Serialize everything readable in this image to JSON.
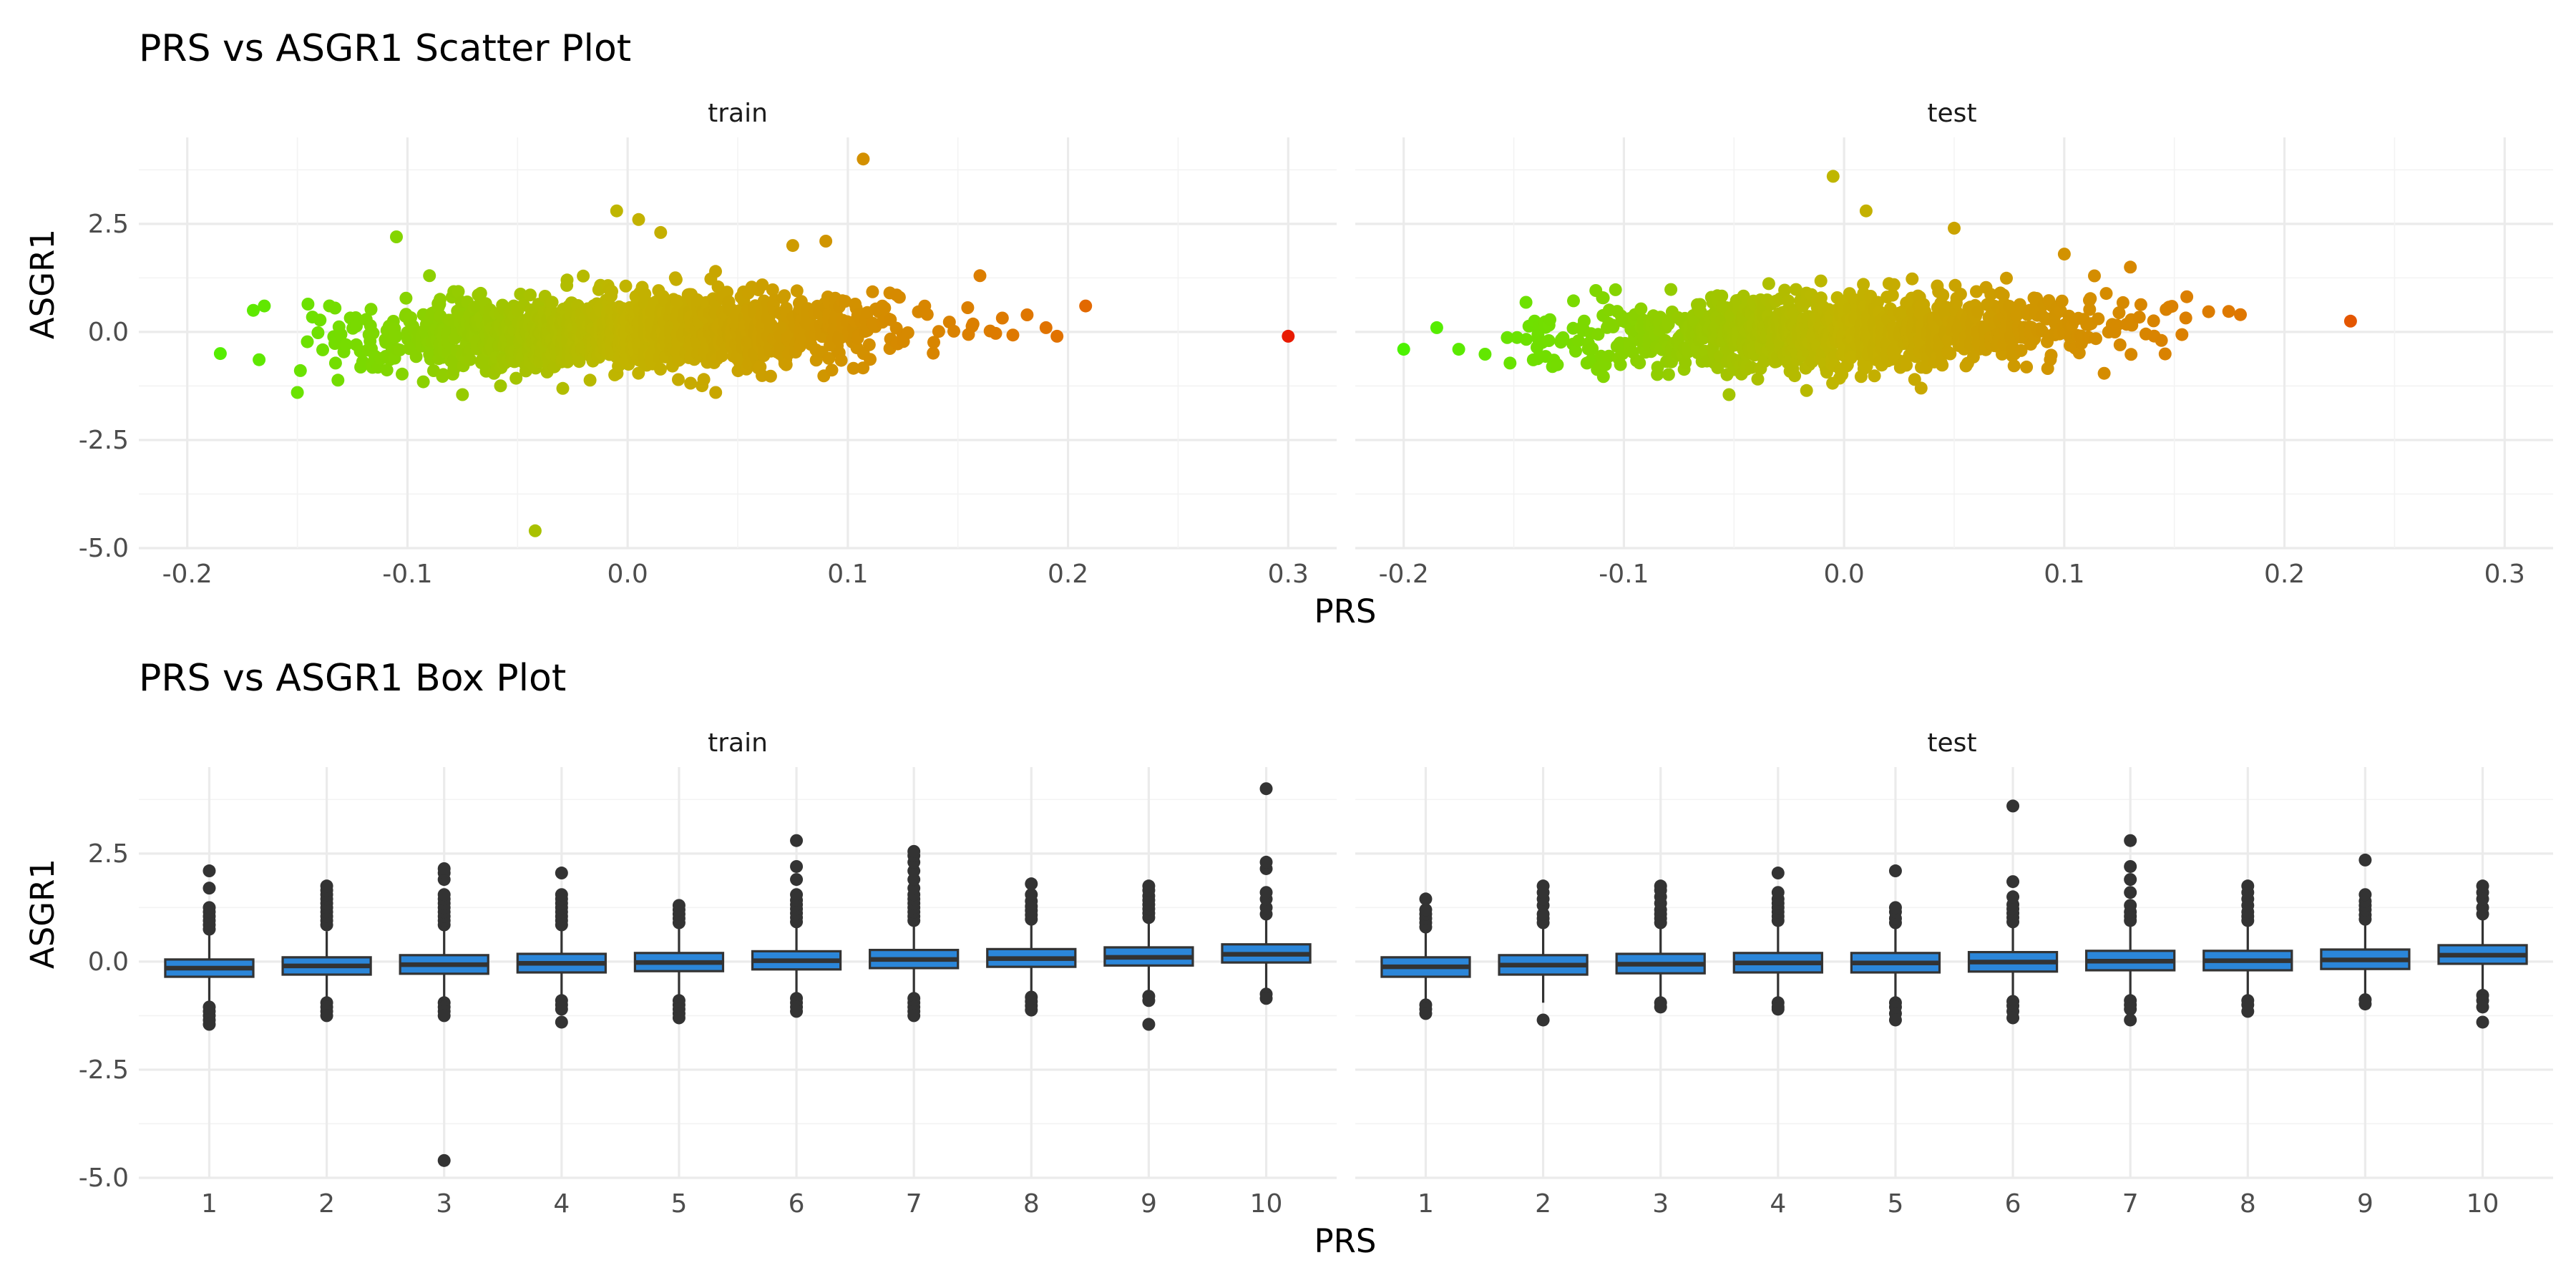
{
  "titles": {
    "scatter": "PRS vs ASGR1 Scatter Plot",
    "box": "PRS vs ASGR1 Box Plot"
  },
  "colors": {
    "point_low": "#4cf200",
    "point_mid": "#c2b400",
    "point_high": "#e27000",
    "point_max": "#e81a00",
    "box_fill": "#2b86d9",
    "box_line": "#333333",
    "outlier": "#333333",
    "grid": "#ebebeb"
  },
  "chart_data": [
    {
      "type": "scatter",
      "title": "PRS vs ASGR1 Scatter Plot",
      "xlabel": "PRS",
      "ylabel": "ASGR1",
      "xlim": [
        -0.222,
        0.322
      ],
      "ylim": [
        -5.0,
        4.5
      ],
      "xticks": [
        -0.2,
        -0.1,
        0.0,
        0.1,
        0.2,
        0.3
      ],
      "xtick_labels": [
        "-0.2",
        "-0.1",
        "0.0",
        "0.1",
        "0.2",
        "0.3"
      ],
      "yticks": [
        -5.0,
        -2.5,
        0.0,
        2.5
      ],
      "ytick_labels": [
        "-5.0",
        "-2.5",
        "0.0",
        "2.5"
      ],
      "grid": true,
      "color_mapping": "PRS (green low → red high)",
      "facets": [
        {
          "label": "train",
          "bulk": {
            "x_range": [
              -0.17,
              0.19
            ],
            "y_sd": 0.42,
            "slope": 1.2,
            "n": 1500
          },
          "points": [
            [
              -0.185,
              -0.5
            ],
            [
              -0.17,
              0.5
            ],
            [
              -0.165,
              0.6
            ],
            [
              -0.15,
              -1.4
            ],
            [
              -0.105,
              2.2
            ],
            [
              -0.09,
              1.3
            ],
            [
              -0.075,
              -1.45
            ],
            [
              -0.042,
              -4.6
            ],
            [
              -0.005,
              2.8
            ],
            [
              0.005,
              2.6
            ],
            [
              0.015,
              2.3
            ],
            [
              0.04,
              -1.4
            ],
            [
              0.075,
              2.0
            ],
            [
              0.09,
              2.1
            ],
            [
              0.107,
              4.0
            ],
            [
              0.16,
              1.3
            ],
            [
              0.19,
              0.1
            ],
            [
              0.195,
              -0.1
            ],
            [
              0.208,
              0.6
            ],
            [
              0.3,
              -0.1
            ]
          ]
        },
        {
          "label": "test",
          "bulk": {
            "x_range": [
              -0.165,
              0.18
            ],
            "y_sd": 0.42,
            "slope": 1.2,
            "n": 1200
          },
          "points": [
            [
              -0.2,
              -0.4
            ],
            [
              -0.185,
              0.1
            ],
            [
              -0.175,
              -0.4
            ],
            [
              -0.005,
              3.6
            ],
            [
              0.01,
              2.8
            ],
            [
              0.05,
              2.4
            ],
            [
              0.035,
              -1.3
            ],
            [
              0.1,
              1.8
            ],
            [
              0.13,
              1.5
            ],
            [
              0.18,
              0.4
            ],
            [
              0.23,
              0.25
            ]
          ]
        }
      ]
    },
    {
      "type": "box",
      "title": "PRS vs ASGR1 Box Plot",
      "xlabel": "PRS",
      "ylabel": "ASGR1",
      "categories": [
        "1",
        "2",
        "3",
        "4",
        "5",
        "6",
        "7",
        "8",
        "9",
        "10"
      ],
      "ylim": [
        -5.0,
        4.5
      ],
      "yticks": [
        -5.0,
        -2.5,
        0.0,
        2.5
      ],
      "ytick_labels": [
        "-5.0",
        "-2.5",
        "0.0",
        "2.5"
      ],
      "grid": true,
      "facets": [
        {
          "label": "train",
          "boxes": [
            {
              "q1": -0.35,
              "median": -0.15,
              "q3": 0.05,
              "wlo": -0.95,
              "whi": 0.65,
              "outliers": [
                -1.05,
                -1.15,
                -1.25,
                -1.35,
                -1.45,
                0.75,
                0.85,
                0.95,
                1.05,
                1.15,
                1.25,
                1.7,
                2.1
              ]
            },
            {
              "q1": -0.3,
              "median": -0.1,
              "q3": 0.1,
              "wlo": -0.85,
              "whi": 0.7,
              "outliers": [
                -0.95,
                -1.05,
                -1.15,
                -1.25,
                0.85,
                0.95,
                1.05,
                1.15,
                1.25,
                1.35,
                1.45,
                1.55,
                1.65,
                1.75
              ]
            },
            {
              "q1": -0.28,
              "median": -0.07,
              "q3": 0.15,
              "wlo": -0.85,
              "whi": 0.75,
              "outliers": [
                -0.95,
                -1.05,
                -1.15,
                -1.25,
                -4.6,
                0.85,
                0.95,
                1.05,
                1.15,
                1.25,
                1.35,
                1.45,
                1.55,
                1.9,
                2.05,
                2.15
              ]
            },
            {
              "q1": -0.25,
              "median": -0.04,
              "q3": 0.18,
              "wlo": -0.8,
              "whi": 0.75,
              "outliers": [
                -0.9,
                -1.0,
                -1.1,
                -1.4,
                0.85,
                0.95,
                1.05,
                1.15,
                1.25,
                1.35,
                1.45,
                1.55,
                2.05
              ]
            },
            {
              "q1": -0.22,
              "median": -0.02,
              "q3": 0.2,
              "wlo": -0.8,
              "whi": 0.8,
              "outliers": [
                -0.9,
                -1.0,
                -1.1,
                -1.2,
                -1.3,
                0.9,
                1.0,
                1.1,
                1.2,
                1.3
              ]
            },
            {
              "q1": -0.18,
              "median": 0.02,
              "q3": 0.24,
              "wlo": -0.75,
              "whi": 0.82,
              "outliers": [
                -0.85,
                -0.95,
                -1.05,
                -1.15,
                0.92,
                1.02,
                1.12,
                1.22,
                1.32,
                1.42,
                1.55,
                1.9,
                2.2,
                2.8
              ]
            },
            {
              "q1": -0.15,
              "median": 0.05,
              "q3": 0.27,
              "wlo": -0.75,
              "whi": 0.85,
              "outliers": [
                -0.85,
                -0.95,
                -1.05,
                -1.15,
                -1.25,
                0.95,
                1.05,
                1.15,
                1.25,
                1.35,
                1.45,
                1.55,
                1.7,
                1.9,
                2.1,
                2.3,
                2.45,
                2.55
              ]
            },
            {
              "q1": -0.12,
              "median": 0.07,
              "q3": 0.29,
              "wlo": -0.72,
              "whi": 0.88,
              "outliers": [
                -0.82,
                -0.92,
                -1.02,
                -1.12,
                0.98,
                1.08,
                1.18,
                1.28,
                1.4,
                1.55,
                1.8
              ]
            },
            {
              "q1": -0.09,
              "median": 0.1,
              "q3": 0.33,
              "wlo": -0.7,
              "whi": 0.92,
              "outliers": [
                -0.8,
                -0.9,
                -1.45,
                1.02,
                1.12,
                1.22,
                1.32,
                1.42,
                1.52,
                1.65,
                1.75
              ]
            },
            {
              "q1": -0.02,
              "median": 0.17,
              "q3": 0.4,
              "wlo": -0.65,
              "whi": 1.0,
              "outliers": [
                -0.75,
                -0.85,
                1.1,
                1.25,
                1.45,
                1.6,
                2.15,
                2.3,
                4.0
              ]
            }
          ]
        },
        {
          "label": "test",
          "boxes": [
            {
              "q1": -0.35,
              "median": -0.12,
              "q3": 0.1,
              "wlo": -0.9,
              "whi": 0.7,
              "outliers": [
                -1.0,
                -1.1,
                -1.2,
                0.8,
                0.9,
                1.0,
                1.1,
                1.2,
                1.45
              ]
            },
            {
              "q1": -0.3,
              "median": -0.08,
              "q3": 0.15,
              "wlo": -0.95,
              "whi": 0.8,
              "outliers": [
                -1.35,
                0.9,
                1.0,
                1.1,
                1.3,
                1.45,
                1.6,
                1.75
              ]
            },
            {
              "q1": -0.27,
              "median": -0.06,
              "q3": 0.18,
              "wlo": -0.85,
              "whi": 0.8,
              "outliers": [
                -0.95,
                -1.05,
                0.9,
                1.0,
                1.1,
                1.2,
                1.35,
                1.5,
                1.65,
                1.75
              ]
            },
            {
              "q1": -0.25,
              "median": -0.03,
              "q3": 0.2,
              "wlo": -0.85,
              "whi": 0.85,
              "outliers": [
                -0.95,
                -1.05,
                -1.1,
                0.95,
                1.05,
                1.15,
                1.25,
                1.35,
                1.45,
                1.6,
                2.05
              ]
            },
            {
              "q1": -0.25,
              "median": -0.03,
              "q3": 0.2,
              "wlo": -0.85,
              "whi": 0.8,
              "outliers": [
                -0.95,
                -1.05,
                -1.2,
                -1.35,
                0.9,
                1.0,
                1.15,
                1.25,
                2.1
              ]
            },
            {
              "q1": -0.23,
              "median": -0.01,
              "q3": 0.22,
              "wlo": -0.82,
              "whi": 0.82,
              "outliers": [
                -0.92,
                -1.02,
                -1.15,
                -1.3,
                0.92,
                1.02,
                1.12,
                1.22,
                1.32,
                1.5,
                1.85,
                3.6
              ]
            },
            {
              "q1": -0.2,
              "median": 0.01,
              "q3": 0.25,
              "wlo": -0.8,
              "whi": 0.85,
              "outliers": [
                -0.9,
                -1.0,
                -1.1,
                -1.35,
                0.95,
                1.05,
                1.15,
                1.3,
                1.6,
                1.9,
                2.2,
                2.8
              ]
            },
            {
              "q1": -0.2,
              "median": 0.02,
              "q3": 0.25,
              "wlo": -0.8,
              "whi": 0.85,
              "outliers": [
                -0.9,
                -1.0,
                -1.15,
                0.95,
                1.05,
                1.15,
                1.3,
                1.45,
                1.6,
                1.75
              ]
            },
            {
              "q1": -0.17,
              "median": 0.04,
              "q3": 0.28,
              "wlo": -0.78,
              "whi": 0.88,
              "outliers": [
                -0.88,
                -0.98,
                0.98,
                1.08,
                1.2,
                1.3,
                1.4,
                1.55,
                2.35
              ]
            },
            {
              "q1": -0.05,
              "median": 0.15,
              "q3": 0.38,
              "wlo": -0.68,
              "whi": 0.98,
              "outliers": [
                -0.78,
                -0.9,
                -1.05,
                -1.4,
                1.1,
                1.25,
                1.45,
                1.6,
                1.75
              ]
            }
          ]
        }
      ]
    }
  ]
}
